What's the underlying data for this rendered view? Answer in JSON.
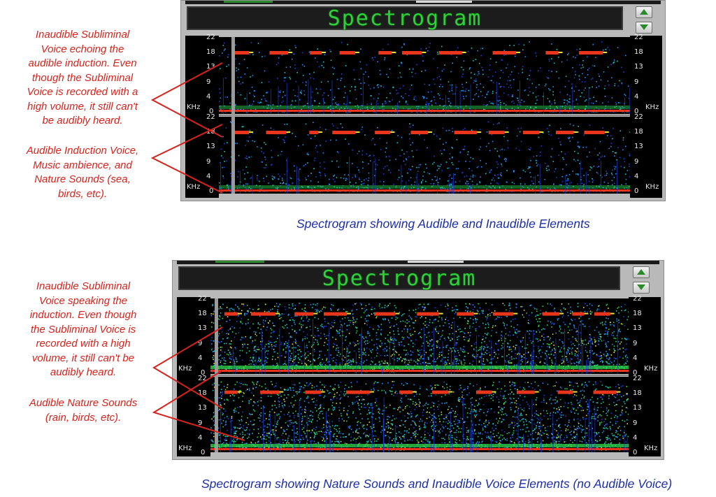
{
  "panels": [
    {
      "title": "Spectrogram",
      "ticks": [
        "22",
        "18",
        "13",
        "9",
        "4",
        "0"
      ],
      "unit": "KHz",
      "annotations": [
        "Inaudible Subliminal\nVoice echoing the\naudible induction. Even\nthough the Subliminal\nVoice is recorded with a\nhigh volume, it still can't\nbe audibly heard.",
        "Audible Induction Voice,\nMusic ambience, and\nNature Sounds (sea,\nbirds, etc)."
      ],
      "caption": "Spectrogram showing Audible and Inaudible Elements",
      "noise_level": 0.25
    },
    {
      "title": "Spectrogram",
      "ticks": [
        "22",
        "18",
        "13",
        "9",
        "4",
        "0"
      ],
      "unit": "KHz",
      "annotations": [
        "Inaudible Subliminal\nVoice speaking the\ninduction. Even though\nthe Subliminal Voice is\nrecorded with a high\nvolume, it still can't be\naudibly heard.",
        "Audible Nature Sounds\n(rain, birds, etc)."
      ],
      "caption": "Spectrogram showing Nature Sounds and Inaudible Voice Elements (no Audible Voice)",
      "noise_level": 0.85
    }
  ],
  "colors": {
    "annotation": "#d8231d",
    "caption": "#1d2fa8",
    "title_led": "#2fcf3a",
    "band": "#e8351c"
  },
  "icons": [
    "arrow-up-icon",
    "arrow-down-icon"
  ]
}
